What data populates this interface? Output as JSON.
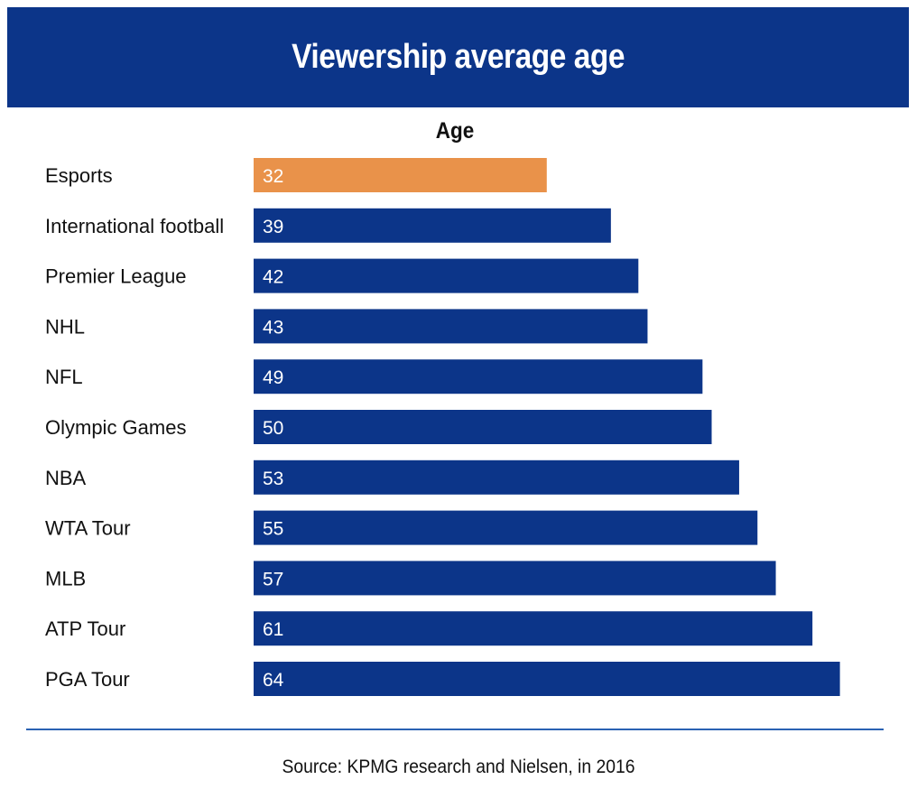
{
  "title": "Viewership average age",
  "source": "Source: KPMG research and Nielsen, in 2016",
  "colors": {
    "header": "#0c3589",
    "bar": "#0c3589",
    "highlight": "#e9924a",
    "divider": "#2a62b3"
  },
  "chart_data": {
    "type": "bar",
    "orientation": "horizontal",
    "title": "Viewership average age",
    "series": [
      {
        "name": "Age",
        "values": [
          32,
          39,
          42,
          43,
          49,
          50,
          53,
          55,
          57,
          61,
          64
        ]
      }
    ],
    "categories": [
      "Esports",
      "International football",
      "Premier League",
      "NHL",
      "NFL",
      "Olympic Games",
      "NBA",
      "WTA Tour",
      "MLB",
      "ATP Tour",
      "PGA Tour"
    ],
    "highlight_category": "Esports",
    "xlim": [
      0,
      64
    ],
    "grid": false,
    "data_labels": true
  }
}
